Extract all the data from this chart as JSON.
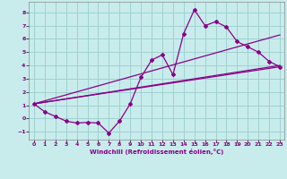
{
  "xlabel": "Windchill (Refroidissement éolien,°C)",
  "bg_color": "#c8ecec",
  "line_color": "#880088",
  "grid_color": "#a0d0d0",
  "xlim": [
    -0.5,
    23.4
  ],
  "ylim": [
    -1.6,
    8.8
  ],
  "yticks": [
    -1,
    0,
    1,
    2,
    3,
    4,
    5,
    6,
    7,
    8
  ],
  "xticks": [
    0,
    1,
    2,
    3,
    4,
    5,
    6,
    7,
    8,
    9,
    10,
    11,
    12,
    13,
    14,
    15,
    16,
    17,
    18,
    19,
    20,
    21,
    22,
    23
  ],
  "line1_x": [
    0,
    1,
    2,
    3,
    4,
    5,
    6,
    7,
    8,
    9,
    10,
    11,
    12,
    13,
    14,
    15,
    16,
    17,
    18,
    19,
    20,
    21,
    22,
    23
  ],
  "line1_y": [
    1.1,
    0.5,
    0.15,
    -0.2,
    -0.35,
    -0.3,
    -0.35,
    -1.1,
    -0.2,
    1.1,
    3.1,
    4.4,
    4.8,
    3.3,
    6.4,
    8.2,
    7.0,
    7.3,
    6.9,
    5.8,
    5.4,
    5.0,
    4.3,
    3.9
  ],
  "line2_x": [
    0,
    23
  ],
  "line2_y": [
    1.1,
    3.9
  ],
  "line3_x": [
    0,
    23
  ],
  "line3_y": [
    1.1,
    4.0
  ],
  "line4_x": [
    0,
    23
  ],
  "line4_y": [
    1.1,
    6.3
  ]
}
